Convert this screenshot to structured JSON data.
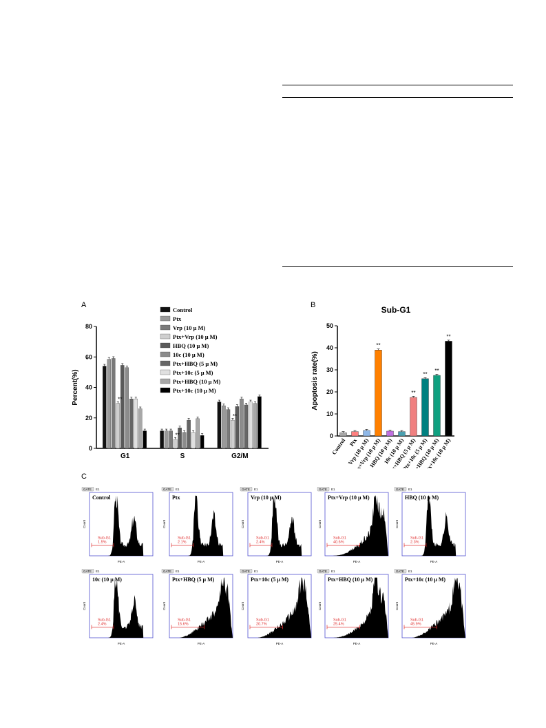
{
  "page": {
    "panel_labels": [
      "A",
      "B",
      "C"
    ]
  },
  "table_lines": {
    "note": ""
  },
  "panel_a": {
    "legend": [
      {
        "label": "Control",
        "color": "#111111"
      },
      {
        "label": "Ptx",
        "color": "#9a9a9a"
      },
      {
        "label": "Vrp (10 μ M)",
        "color": "#7a7a7a"
      },
      {
        "label": "Ptx+Vrp (10 μ M)",
        "color": "#cfcfcf"
      },
      {
        "label": "HBQ (10 μ M)",
        "color": "#5a5a5a"
      },
      {
        "label": "10c (10 μ M)",
        "color": "#8c8c8c"
      },
      {
        "label": "Ptx+HBQ (5 μ M)",
        "color": "#666666"
      },
      {
        "label": "Ptx+10c (5 μ M)",
        "color": "#e0e0e0"
      },
      {
        "label": "Ptx+HBQ (10 μ M)",
        "color": "#a8a8a8"
      },
      {
        "label": "Ptx+10c (10 μ M)",
        "color": "#000000"
      }
    ]
  },
  "panel_b": {
    "title": "Sub-G1",
    "colors": [
      "#aaaaaa",
      "#ff8080",
      "#8fb8e8",
      "#ff8000",
      "#c070e0",
      "#4aa0b0",
      "#f08080",
      "#008080",
      "#10a080",
      "#000000"
    ]
  },
  "chart_data": [
    {
      "type": "bar",
      "ylabel": "Percent(%)",
      "ylim": [
        0,
        80
      ],
      "yticks": [
        0,
        20,
        40,
        60,
        80
      ],
      "categories": [
        "G1",
        "S",
        "G2/M"
      ],
      "series": [
        {
          "name": "Control",
          "values": [
            54,
            11.5,
            30.5
          ]
        },
        {
          "name": "Ptx",
          "values": [
            58.5,
            11.5,
            28
          ]
        },
        {
          "name": "Vrp (10 μ M)",
          "values": [
            59,
            11.5,
            25.5
          ]
        },
        {
          "name": "Ptx+Vrp (10 μ M)",
          "values": [
            29.5,
            6,
            18.5
          ]
        },
        {
          "name": "HBQ (10 μ M)",
          "values": [
            54.5,
            13.5,
            27.5
          ]
        },
        {
          "name": "10c (10 μ M)",
          "values": [
            53,
            10.5,
            32.5
          ]
        },
        {
          "name": "Ptx+HBQ (5 μ M)",
          "values": [
            32.5,
            18.5,
            28.5
          ]
        },
        {
          "name": "Ptx+10c (5 μ M)",
          "values": [
            32.5,
            10.5,
            30.5
          ]
        },
        {
          "name": "Ptx+HBQ (10 μ M)",
          "values": [
            26,
            19.5,
            29.5
          ]
        },
        {
          "name": "Ptx+10c (10 μ M)",
          "values": [
            11.5,
            8.5,
            34
          ]
        }
      ],
      "annotations": [
        {
          "category": "G1",
          "series": "Ptx+Vrp (10 μ M)",
          "text": "**"
        },
        {
          "category": "S",
          "series": "Ptx+Vrp (10 μ M)",
          "text": "**"
        },
        {
          "category": "G2/M",
          "series": "Ptx+Vrp (10 μ M)",
          "text": "**"
        }
      ]
    },
    {
      "type": "bar",
      "title": "Sub-G1",
      "ylabel": "Apoptosis rate(%)",
      "ylim": [
        0,
        50
      ],
      "yticks": [
        0,
        10,
        20,
        30,
        40,
        50
      ],
      "categories": [
        "Control",
        "Ptx",
        "Vrp (10 μ M)",
        "Ptx+Vrp (10 μ M)",
        "HBQ (10 μ M)",
        "10c (10 μ M)",
        "Ptx+HBQ (5 μ M)",
        "Ptx+10c (5 μ M)",
        "Ptx+HBQ (10 μ M)",
        "Ptx+10c (10 μ M)"
      ],
      "values": [
        1.5,
        2.0,
        2.5,
        39,
        2.2,
        2.0,
        17.5,
        26,
        27.5,
        43
      ],
      "annotations": [
        "",
        "",
        "",
        "**",
        "",
        "",
        "**",
        "**",
        "**",
        "**"
      ]
    }
  ],
  "panel_c": {
    "gate_label": "GATE",
    "gate_value": "E1",
    "y_axis": "Count",
    "x_axis": "PE-A",
    "marker": "Sub-G1",
    "cells": [
      {
        "label": "Control",
        "pct": "1.5%",
        "profile": "twopeak"
      },
      {
        "label": "Ptx",
        "pct": "2.1%",
        "profile": "twopeak"
      },
      {
        "label": "Vrp (10 μ M)",
        "pct": "2.4%",
        "profile": "twopeak"
      },
      {
        "label": "Ptx+Vrp (10 μ M)",
        "pct": "40.6%",
        "profile": "rising"
      },
      {
        "label": "HBQ (10 μ M)",
        "pct": "2.3%",
        "profile": "twopeak"
      },
      {
        "label": "10c (10 μ M)",
        "pct": "2.4%",
        "profile": "twopeak"
      },
      {
        "label": "Ptx+HBQ (5 μ M)",
        "pct": "15.6%",
        "profile": "ramp"
      },
      {
        "label": "Ptx+10c (5 μ M)",
        "pct": "20.7%",
        "profile": "ramp"
      },
      {
        "label": "Ptx+HBQ (10 μ M)",
        "pct": "25.4%",
        "profile": "rising"
      },
      {
        "label": "Ptx+10c (10 μ M)",
        "pct": "45.9%",
        "profile": "ramp"
      }
    ]
  }
}
